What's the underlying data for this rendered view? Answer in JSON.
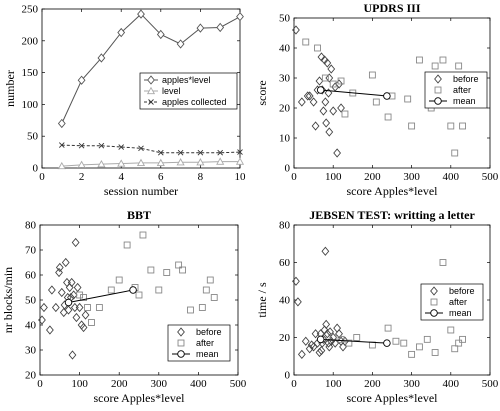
{
  "chart_data": [
    {
      "id": "p1",
      "type": "line",
      "title": "",
      "xlabel": "session number",
      "ylabel": "number",
      "xlim": [
        0,
        10
      ],
      "ylim": [
        0,
        250
      ],
      "xticks": [
        0,
        2,
        4,
        6,
        8,
        10
      ],
      "yticks": [
        0,
        50,
        100,
        150,
        200,
        250
      ],
      "legend_position": "center-right",
      "series": [
        {
          "name": "apples*level",
          "marker": "diamond",
          "line": "solid",
          "color": "#555555",
          "x": [
            1,
            2,
            3,
            4,
            5,
            6,
            7,
            8,
            9,
            10
          ],
          "y": [
            70,
            138,
            173,
            213,
            242,
            210,
            195,
            220,
            221,
            238
          ]
        },
        {
          "name": "level",
          "marker": "triangle",
          "line": "solid",
          "color": "#aaaaaa",
          "x": [
            1,
            2,
            3,
            4,
            5,
            6,
            7,
            8,
            9,
            10
          ],
          "y": [
            3,
            5,
            6,
            7,
            8,
            8,
            9,
            9,
            10,
            10
          ]
        },
        {
          "name": "apples collected",
          "marker": "x",
          "line": "dashed",
          "color": "#333333",
          "x": [
            1,
            2,
            3,
            4,
            5,
            6,
            7,
            8,
            9,
            10
          ],
          "y": [
            36,
            35,
            35,
            33,
            31,
            24,
            24,
            24,
            24,
            25
          ]
        }
      ]
    },
    {
      "id": "p2",
      "type": "scatter",
      "title": "UPDRS III",
      "xlabel": "score Apples*level",
      "ylabel": "score",
      "xlim": [
        0,
        500
      ],
      "ylim": [
        0,
        50
      ],
      "xticks": [
        0,
        100,
        200,
        300,
        400,
        500
      ],
      "yticks": [
        0,
        10,
        20,
        30,
        40,
        50
      ],
      "legend_position": "right",
      "legend_labels": [
        "before",
        "after",
        "mean"
      ],
      "series": [
        {
          "name": "before",
          "marker": "diamond",
          "x": [
            5,
            20,
            40,
            50,
            55,
            60,
            65,
            70,
            72,
            75,
            78,
            80,
            82,
            85,
            88,
            90,
            95,
            100,
            105,
            110,
            115,
            120,
            35,
            90
          ],
          "y": [
            46,
            22,
            24,
            22,
            14,
            26,
            29,
            37,
            26,
            19,
            36,
            22,
            15,
            35,
            25,
            12,
            33,
            19,
            27,
            5,
            28,
            20,
            24,
            30
          ]
        },
        {
          "name": "after",
          "marker": "square",
          "x": [
            30,
            60,
            80,
            100,
            120,
            130,
            150,
            200,
            210,
            240,
            250,
            290,
            300,
            320,
            350,
            360,
            380,
            400,
            410,
            420,
            430
          ],
          "y": [
            42,
            40,
            30,
            28,
            29,
            18,
            25,
            31,
            22,
            17,
            24,
            23,
            14,
            36,
            20,
            34,
            36,
            14,
            5,
            34,
            14
          ]
        },
        {
          "name": "mean",
          "marker": "circle",
          "x": [
            68,
            237
          ],
          "y": [
            26,
            24
          ]
        }
      ]
    },
    {
      "id": "p3",
      "type": "scatter",
      "title": "BBT",
      "xlabel": "score Apples*level",
      "ylabel": "nr blocks/min",
      "xlim": [
        0,
        500
      ],
      "ylim": [
        20,
        80
      ],
      "xticks": [
        0,
        100,
        200,
        300,
        400,
        500
      ],
      "yticks": [
        20,
        30,
        40,
        50,
        60,
        70,
        80
      ],
      "legend_position": "bottom-right",
      "legend_labels": [
        "before",
        "after",
        "mean"
      ],
      "series": [
        {
          "name": "before",
          "marker": "diamond",
          "x": [
            5,
            10,
            25,
            30,
            40,
            48,
            50,
            55,
            60,
            62,
            65,
            68,
            70,
            72,
            75,
            78,
            80,
            82,
            85,
            88,
            90,
            92,
            95,
            100,
            105,
            110,
            115
          ],
          "y": [
            42,
            47,
            38,
            54,
            47,
            61,
            63,
            53,
            45,
            48,
            65,
            57,
            51,
            46,
            55,
            51,
            57,
            28,
            52,
            47,
            73,
            43,
            55,
            47,
            40,
            39,
            44
          ]
        },
        {
          "name": "after",
          "marker": "square",
          "x": [
            100,
            110,
            120,
            130,
            150,
            180,
            200,
            220,
            240,
            250,
            260,
            280,
            300,
            320,
            350,
            360,
            380,
            400,
            410,
            420,
            430,
            440
          ],
          "y": [
            52,
            51,
            47,
            41,
            47,
            54,
            58,
            72,
            55,
            52,
            76,
            62,
            54,
            61,
            64,
            62,
            46,
            37,
            47,
            54,
            58,
            51
          ]
        },
        {
          "name": "mean",
          "marker": "circle",
          "x": [
            72,
            235
          ],
          "y": [
            49,
            54
          ]
        }
      ]
    },
    {
      "id": "p4",
      "type": "scatter",
      "title": "JEBSEN TEST: writting a letter",
      "xlabel": "score Apples*level",
      "ylabel": "time / s",
      "xlim": [
        0,
        500
      ],
      "ylim": [
        0,
        80
      ],
      "xticks": [
        0,
        100,
        200,
        300,
        400,
        500
      ],
      "yticks": [
        0,
        20,
        40,
        60,
        80
      ],
      "legend_position": "right",
      "legend_labels": [
        "before",
        "after",
        "mean"
      ],
      "series": [
        {
          "name": "before",
          "marker": "diamond",
          "x": [
            5,
            10,
            20,
            30,
            40,
            45,
            50,
            55,
            60,
            65,
            68,
            70,
            72,
            75,
            78,
            80,
            82,
            85,
            88,
            90,
            92,
            95,
            100,
            105,
            110,
            115,
            120,
            125,
            130
          ],
          "y": [
            50,
            39,
            11,
            18,
            14,
            16,
            15,
            22,
            17,
            12,
            22,
            13,
            17,
            19,
            24,
            66,
            27,
            22,
            17,
            15,
            23,
            18,
            20,
            17,
            25,
            22,
            18,
            15,
            18
          ]
        },
        {
          "name": "after",
          "marker": "square",
          "x": [
            100,
            120,
            140,
            160,
            200,
            240,
            260,
            280,
            300,
            320,
            340,
            360,
            380,
            400,
            410,
            420,
            430
          ],
          "y": [
            20,
            19,
            17,
            20,
            16,
            25,
            18,
            17,
            11,
            15,
            19,
            12,
            60,
            24,
            14,
            17,
            19
          ]
        },
        {
          "name": "mean",
          "marker": "circle",
          "x": [
            68,
            237
          ],
          "y": [
            19,
            17
          ]
        }
      ]
    }
  ]
}
